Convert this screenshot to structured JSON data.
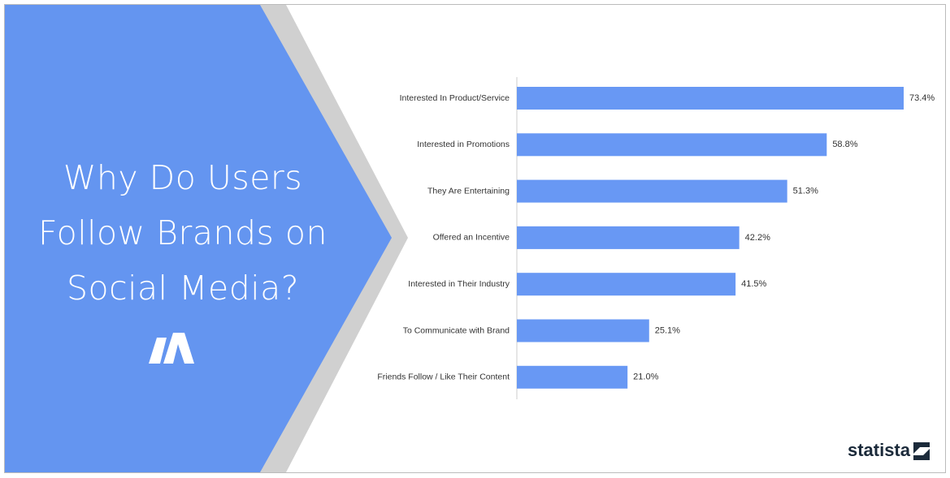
{
  "chart_data": {
    "type": "bar",
    "orientation": "horizontal",
    "title": "Why Do Users Follow Brands on Social Media?",
    "categories": [
      "Interested In Product/Service",
      "Interested in Promotions",
      "They Are Entertaining",
      "Offered an Incentive",
      "Interested in Their Industry",
      "To Communicate with Brand",
      "Friends Follow / Like Their Content"
    ],
    "values": [
      73.4,
      58.8,
      51.3,
      42.2,
      41.5,
      25.1,
      21.0
    ],
    "value_labels": [
      "73.4%",
      "58.8%",
      "51.3%",
      "42.2%",
      "41.5%",
      "25.1%",
      "21.0%"
    ],
    "color": "#6898f4",
    "source": "statista"
  }
}
